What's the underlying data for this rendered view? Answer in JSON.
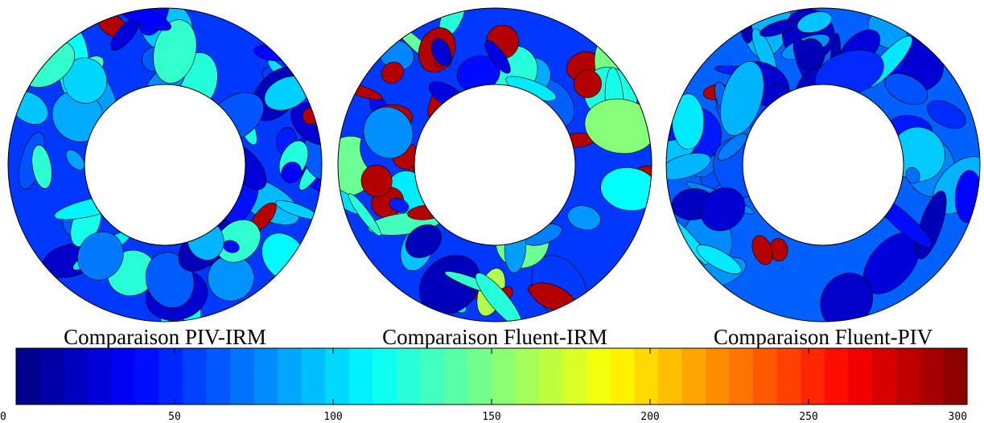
{
  "panels": [
    {
      "label": "Comparaison PIV-IRM"
    },
    {
      "label": "Comparaison Fluent-IRM"
    },
    {
      "label": "Comparaison Fluent-PIV"
    }
  ],
  "colorbar": {
    "lim": [
      0,
      300
    ],
    "ticks": [
      0,
      50,
      100,
      150,
      200,
      250,
      300
    ]
  }
}
